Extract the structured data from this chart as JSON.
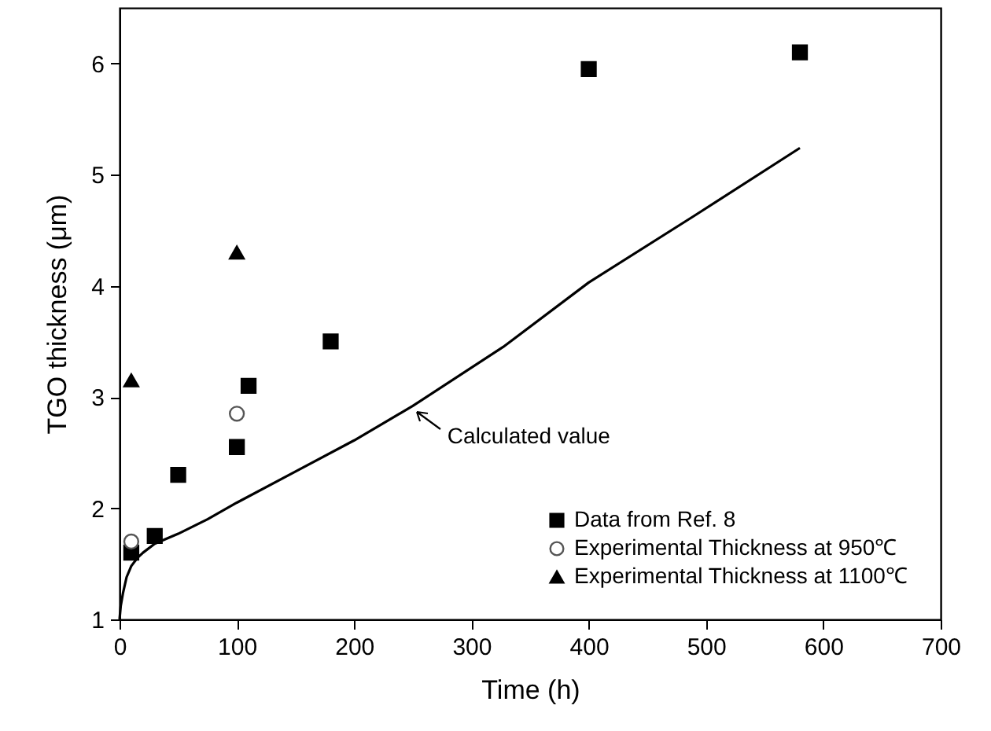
{
  "chart_data": {
    "type": "scatter",
    "xlabel": "Time (h)",
    "ylabel": "TGO thickness (μm)",
    "xlim": [
      0,
      700
    ],
    "xticks": [
      0,
      100,
      200,
      300,
      400,
      500,
      600,
      700
    ],
    "ylim": [
      1,
      6.5
    ],
    "yticks": [
      1,
      2,
      3,
      4,
      5,
      6
    ],
    "grid": false,
    "legend": "bottom right",
    "series": [
      {
        "name": "Data from Ref. 8",
        "marker": "square",
        "color": "#000000",
        "x": [
          10,
          30,
          50,
          100,
          110,
          180,
          400,
          580
        ],
        "values": [
          1.6,
          1.75,
          2.3,
          2.55,
          3.1,
          3.5,
          5.95,
          6.1
        ]
      },
      {
        "name": "Experimental Thickness at 950℃",
        "marker": "circle",
        "color": "#555555",
        "x": [
          10,
          100
        ],
        "values": [
          1.7,
          2.85
        ]
      },
      {
        "name": "Experimental Thickness at 1100℃",
        "marker": "triangle",
        "color": "#000000",
        "x": [
          10,
          100
        ],
        "values": [
          3.15,
          4.3
        ]
      },
      {
        "type": "line",
        "color": "#000000",
        "line_style": "solid",
        "x": [
          0,
          1,
          3,
          6,
          10,
          15,
          20,
          30,
          50,
          75,
          100,
          150,
          200,
          250,
          327,
          400,
          490,
          580
        ],
        "values": [
          1.0,
          1.12,
          1.24,
          1.38,
          1.48,
          1.55,
          1.6,
          1.68,
          1.77,
          1.9,
          2.05,
          2.33,
          2.61,
          2.92,
          3.45,
          4.03,
          4.63,
          5.24
        ]
      }
    ],
    "annotations": [
      {
        "text": "Calculated value",
        "x": 250,
        "y": 2.92
      }
    ]
  }
}
